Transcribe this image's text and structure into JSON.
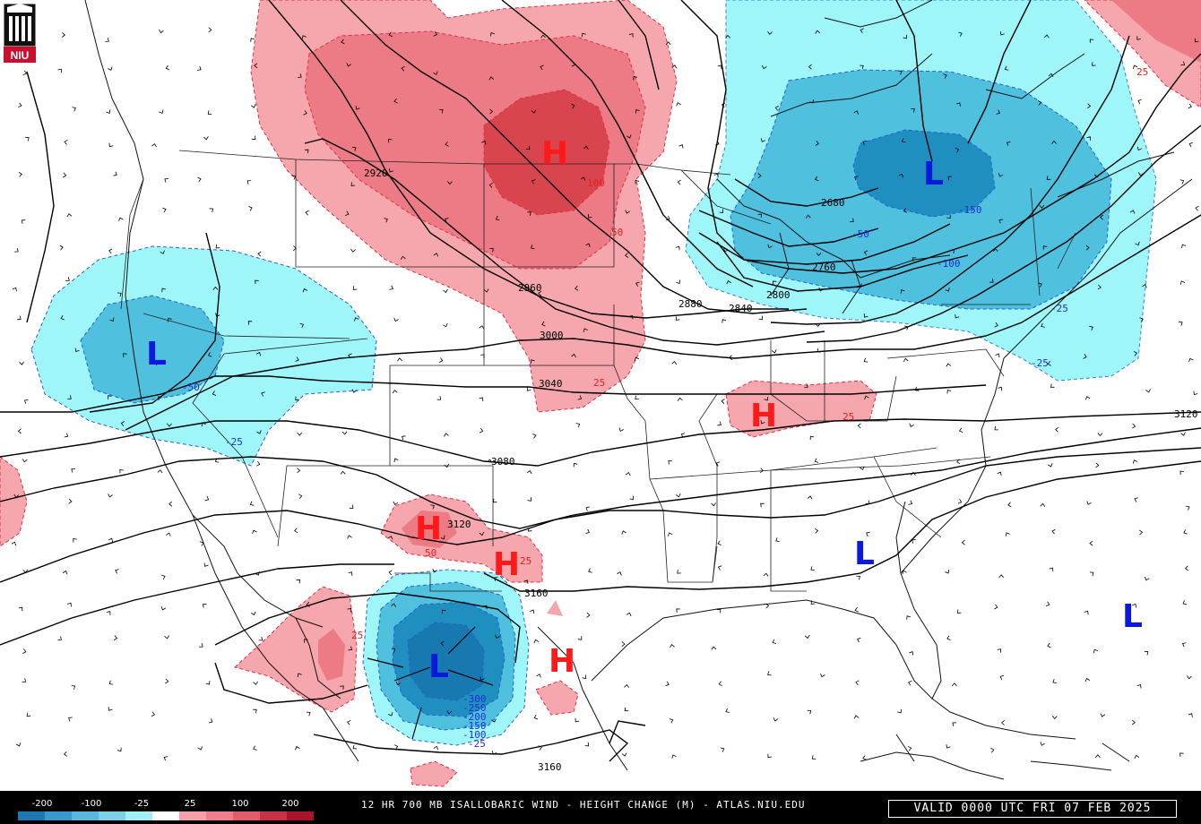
{
  "logo": {
    "text": "NIU"
  },
  "footer": {
    "title": "12 HR 700 MB ISALLOBARIC WIND - HEIGHT CHANGE (M) - ATLAS.NIU.EDU",
    "valid": "VALID 0000 UTC FRI 07 FEB 2025"
  },
  "colorbar": {
    "labels": [
      "-200",
      "-100",
      "-25",
      "25",
      "100",
      "200"
    ],
    "colors": [
      "#1f78b4",
      "#3a99cb",
      "#5ab6dd",
      "#7dd0e8",
      "#a0f0f5",
      "#ffffff",
      "#f5a0a8",
      "#ee7f8a",
      "#e05c69",
      "#c83244",
      "#a8142a"
    ]
  },
  "contours": {
    "heights": [
      "2920",
      "2960",
      "3000",
      "3040",
      "3080",
      "3120",
      "3160",
      "3160",
      "2880",
      "2840",
      "2800",
      "2760",
      "2680",
      "3120"
    ],
    "changes": [
      "100",
      "50",
      "25",
      "25",
      "50",
      "25",
      "25",
      "-50",
      "-25",
      "-150",
      "-100",
      "-50",
      "-25",
      "-25",
      "-300",
      "-250",
      "-200",
      "-150",
      "-100",
      "-25",
      "25"
    ]
  },
  "centers": {
    "highs": [
      "H",
      "H",
      "H",
      "H",
      "H"
    ],
    "lows": [
      "L",
      "L",
      "L",
      "L",
      "L"
    ]
  },
  "colors": {
    "high": "#ff1a1a",
    "low": "#0a1adc",
    "fall_light": "#9ef6f8",
    "fall_mid": "#4fc0de",
    "fall_dark": "#1f8fc0",
    "rise_light": "#f6a6ad",
    "rise_mid": "#ec7b86",
    "rise_dark": "#d8454f"
  }
}
